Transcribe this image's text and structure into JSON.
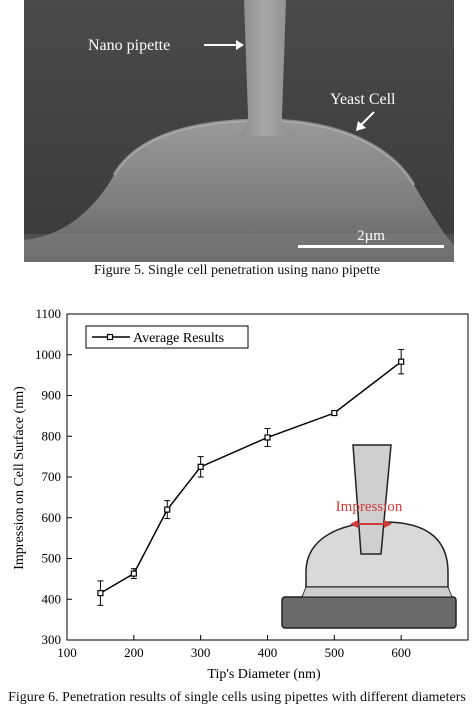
{
  "figure5": {
    "pipette_label": "Nano pipette",
    "cell_label": "Yeast Cell",
    "scale_label": "2µm",
    "caption": "Figure 5.    Single cell penetration using nano pipette"
  },
  "figure6": {
    "caption": "Figure 6.    Penetration results of single cells using pipettes with different diameters",
    "inset_label": "Impression",
    "colors": {
      "inset_label": "#d13b3b",
      "line": "#000000"
    }
  },
  "chart_data": {
    "type": "line",
    "xlabel": "Tip's Diameter (nm)",
    "ylabel": "Impression on Cell Surface (nm)",
    "xlim": [
      100,
      700
    ],
    "ylim": [
      300,
      1100
    ],
    "xticks": [
      100,
      200,
      300,
      400,
      500,
      600
    ],
    "yticks": [
      300,
      400,
      500,
      600,
      700,
      800,
      900,
      1000,
      1100
    ],
    "legend_position": "top-left",
    "grid": false,
    "series": [
      {
        "name": "Average Results",
        "marker": "square",
        "x": [
          150,
          200,
          250,
          300,
          400,
          500,
          600
        ],
        "y": [
          415,
          463,
          620,
          725,
          797,
          857,
          983
        ],
        "err": [
          30,
          12,
          22,
          25,
          22,
          5,
          30
        ]
      }
    ]
  }
}
